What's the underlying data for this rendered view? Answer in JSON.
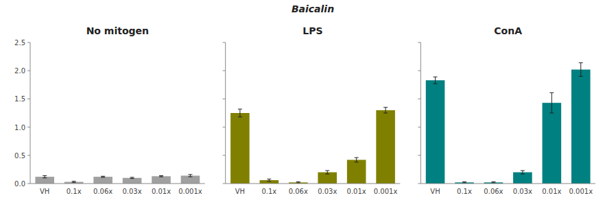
{
  "chart_data": [
    {
      "type": "bar",
      "title": "No mitogen",
      "categories": [
        "VH",
        "0.1x",
        "0.06x",
        "0.03x",
        "0.01x",
        "0.001x"
      ],
      "values": [
        0.12,
        0.03,
        0.12,
        0.1,
        0.13,
        0.14
      ],
      "errors": [
        0.02,
        0.01,
        0.01,
        0.01,
        0.01,
        0.02
      ],
      "color": "#a0a0a0",
      "ylim": [
        0,
        2.5
      ],
      "yticks": [
        {
          "value": 0.0,
          "label": "0.0"
        },
        0.5,
        {
          "value": 1.0,
          "label": "1.0"
        },
        1.5,
        {
          "value": 2.0,
          "label": "2.0"
        },
        2.5
      ],
      "grid": false
    },
    {
      "type": "bar",
      "title": "LPS",
      "annotations": [
        "Baicalin"
      ],
      "categories": [
        "VH",
        "0.1x",
        "0.06x",
        "0.03x",
        "0.01x",
        "0.001x"
      ],
      "values": [
        1.25,
        0.06,
        0.02,
        0.2,
        0.42,
        1.3
      ],
      "errors": [
        0.07,
        0.02,
        0.01,
        0.03,
        0.04,
        0.05
      ],
      "color": "#808000",
      "ylim": [
        0,
        2.5
      ],
      "yticks": [
        {
          "value": 0.0,
          "label": "0.0"
        },
        0.5,
        {
          "value": 1.0,
          "label": "1.0"
        },
        1.5,
        {
          "value": 2.0,
          "label": "2.0"
        },
        2.5
      ],
      "grid": false,
      "tick_labels": "x"
    },
    {
      "type": "bar",
      "title": "ConA",
      "categories": [
        "VH",
        "0.1x",
        "0.06x",
        "0.03x",
        "0.01x",
        "0.001x"
      ],
      "values": [
        1.83,
        0.02,
        0.02,
        0.2,
        1.43,
        2.02
      ],
      "errors": [
        0.06,
        0.01,
        0.01,
        0.03,
        0.18,
        0.12
      ],
      "color": "#008080",
      "ylim": [
        0,
        2.5
      ],
      "yticks": [
        {
          "value": 0.0,
          "label": "0.0"
        },
        0.5,
        {
          "value": 1.0,
          "label": "1.0"
        },
        1.5,
        {
          "value": 2.0,
          "label": "2.0"
        },
        2.5
      ],
      "grid": false,
      "tick_labels": "x"
    }
  ]
}
